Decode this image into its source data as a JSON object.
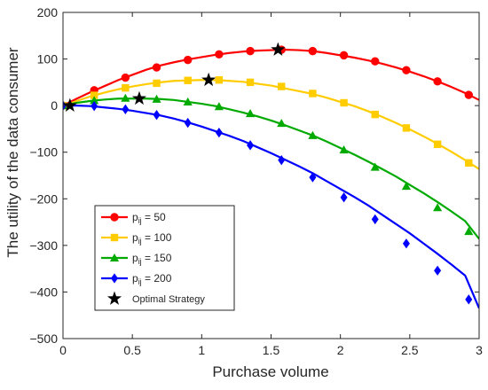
{
  "chart_data": {
    "type": "line",
    "xlabel": "Purchase volume",
    "ylabel": "The utility of the data consumer",
    "xlim": [
      0,
      3
    ],
    "ylim": [
      -500,
      200
    ],
    "xticks": [
      0,
      0.5,
      1,
      1.5,
      2,
      2.5,
      3
    ],
    "xtick_labels": [
      "0",
      "0.5",
      "1",
      "1.5",
      "2",
      "2.5",
      "3"
    ],
    "yticks": [
      -500,
      -400,
      -300,
      -200,
      -100,
      0,
      100,
      200
    ],
    "ytick_labels": [
      "−500",
      "−400",
      "−300",
      "−200",
      "−100",
      "0",
      "100",
      "200"
    ],
    "grid": false,
    "legend_position": "lower-left",
    "series": [
      {
        "name": "p_ij = 50",
        "name_base": "p",
        "name_sub": "ij",
        "name_rest": " = 50",
        "color": "#ff0000",
        "marker": "circle",
        "x": [
          0,
          0.225,
          0.45,
          0.675,
          0.9,
          1.125,
          1.35,
          1.575,
          1.8,
          2.025,
          2.25,
          2.475,
          2.7,
          2.925
        ],
        "y": [
          0,
          33,
          60,
          82,
          98,
          110,
          117,
          120,
          117,
          108,
          95,
          76,
          52,
          23
        ],
        "curve_x": [
          0,
          0.1,
          0.2,
          0.3,
          0.4,
          0.5,
          0.6,
          0.7,
          0.8,
          0.9,
          1.0,
          1.1,
          1.2,
          1.3,
          1.4,
          1.5,
          1.6,
          1.7,
          1.8,
          1.9,
          2.0,
          2.1,
          2.2,
          2.3,
          2.4,
          2.5,
          2.6,
          2.7,
          2.8,
          2.9,
          3.0
        ],
        "curve_y": [
          0,
          15,
          29,
          42,
          55,
          66,
          77,
          86,
          93,
          99,
          104,
          109,
          113,
          116,
          118,
          119,
          120,
          119,
          117,
          113,
          108,
          103,
          97,
          90,
          82,
          73,
          63,
          52,
          40,
          27,
          12
        ]
      },
      {
        "name": "p_ij = 100",
        "name_base": "p",
        "name_sub": "ij",
        "name_rest": " = 100",
        "color": "#ffcc00",
        "marker": "square",
        "x": [
          0,
          0.225,
          0.45,
          0.675,
          0.9,
          1.125,
          1.35,
          1.575,
          1.8,
          2.025,
          2.25,
          2.475,
          2.7,
          2.925
        ],
        "y": [
          0,
          22,
          38,
          48,
          54,
          55,
          50,
          41,
          26,
          6,
          -19,
          -48,
          -83,
          -123
        ],
        "curve_x": [
          0,
          0.1,
          0.2,
          0.3,
          0.4,
          0.5,
          0.6,
          0.7,
          0.8,
          0.9,
          1.0,
          1.1,
          1.2,
          1.3,
          1.4,
          1.5,
          1.6,
          1.7,
          1.8,
          1.9,
          2.0,
          2.1,
          2.2,
          2.3,
          2.4,
          2.5,
          2.6,
          2.7,
          2.8,
          2.9,
          3.0
        ],
        "curve_y": [
          0,
          10,
          20,
          28,
          35,
          41,
          46,
          50,
          53,
          54,
          55,
          55,
          53,
          51,
          47,
          43,
          37,
          31,
          25,
          17,
          8,
          -1,
          -12,
          -24,
          -37,
          -51,
          -66,
          -82,
          -99,
          -117,
          -136
        ]
      },
      {
        "name": "p_ij = 150",
        "name_base": "p",
        "name_sub": "ij",
        "name_rest": " = 150",
        "color": "#00aa00",
        "marker": "triangle",
        "x": [
          0,
          0.225,
          0.45,
          0.675,
          0.9,
          1.125,
          1.35,
          1.575,
          1.8,
          2.025,
          2.25,
          2.475,
          2.7,
          2.925
        ],
        "y": [
          0,
          11,
          16,
          14,
          8,
          -2,
          -17,
          -38,
          -64,
          -95,
          -132,
          -173,
          -219,
          -270
        ],
        "curve_x": [
          0,
          0.1,
          0.2,
          0.3,
          0.4,
          0.5,
          0.6,
          0.7,
          0.8,
          0.9,
          1.0,
          1.1,
          1.2,
          1.3,
          1.4,
          1.5,
          1.6,
          1.7,
          1.8,
          1.9,
          2.0,
          2.1,
          2.2,
          2.3,
          2.4,
          2.5,
          2.6,
          2.7,
          2.8,
          2.9,
          3.0
        ],
        "curve_y": [
          0,
          6,
          10,
          13,
          15,
          15,
          15,
          14,
          12,
          8,
          4,
          -1,
          -8,
          -15,
          -23,
          -32,
          -42,
          -53,
          -64,
          -77,
          -91,
          -105,
          -120,
          -136,
          -152,
          -170,
          -188,
          -207,
          -227,
          -248,
          -286
        ]
      },
      {
        "name": "p_ij = 200",
        "name_base": "p",
        "name_sub": "ij",
        "name_rest": " = 200",
        "color": "#0000ff",
        "marker": "diamond",
        "x": [
          0,
          0.225,
          0.45,
          0.675,
          0.9,
          1.125,
          1.35,
          1.575,
          1.8,
          2.025,
          2.25,
          2.475,
          2.7,
          2.925
        ],
        "y": [
          0,
          -1,
          -8,
          -20,
          -37,
          -58,
          -85,
          -117,
          -154,
          -197,
          -244,
          -296,
          -354,
          -416
        ],
        "curve_x": [
          0,
          0.1,
          0.2,
          0.3,
          0.4,
          0.5,
          0.6,
          0.7,
          0.8,
          0.9,
          1.0,
          1.1,
          1.2,
          1.3,
          1.4,
          1.5,
          1.6,
          1.7,
          1.8,
          1.9,
          2.0,
          2.1,
          2.2,
          2.3,
          2.4,
          2.5,
          2.6,
          2.7,
          2.8,
          2.9,
          3.0
        ],
        "curve_y": [
          0,
          0,
          -1,
          -4,
          -7,
          -11,
          -16,
          -21,
          -28,
          -36,
          -45,
          -55,
          -65,
          -76,
          -89,
          -102,
          -116,
          -130,
          -145,
          -162,
          -179,
          -196,
          -214,
          -234,
          -254,
          -274,
          -296,
          -318,
          -341,
          -365,
          -435
        ]
      },
      {
        "name": "Optimal Strategy",
        "color": "#000000",
        "marker": "star",
        "line": false,
        "x": [
          0.05,
          0.55,
          1.05,
          1.55
        ],
        "y": [
          0,
          15,
          55,
          120
        ]
      }
    ]
  }
}
